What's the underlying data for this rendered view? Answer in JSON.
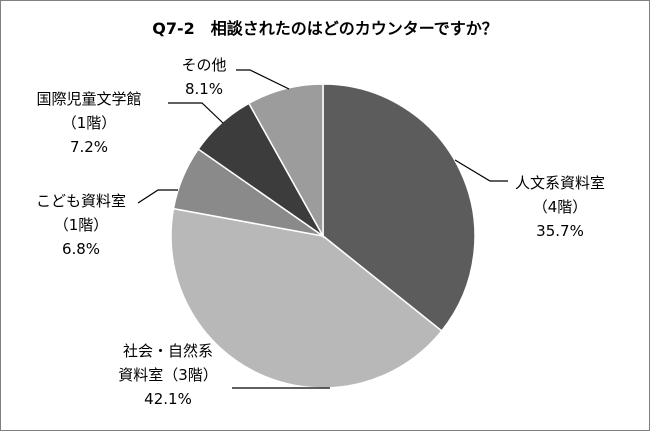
{
  "chart_data": {
    "type": "pie",
    "title": "Q7-2　相談されたのはどのカウンターですか？",
    "start": "top-clockwise",
    "slices": [
      {
        "lines": [
          "人文系資料室",
          "（4階）",
          "35.7%"
        ],
        "value": 35.7,
        "color": "#5c5c5c"
      },
      {
        "lines": [
          "社会・自然系",
          "資料室（3階）",
          "42.1%"
        ],
        "value": 42.1,
        "color": "#b8b8b8"
      },
      {
        "lines": [
          "こども資料室",
          "（1階）",
          "6.8%"
        ],
        "value": 6.8,
        "color": "#8a8a8a"
      },
      {
        "lines": [
          "国際児童文学館",
          "（1階）",
          "7.2%"
        ],
        "value": 7.2,
        "color": "#3c3c3c"
      },
      {
        "lines": [
          "その他",
          "8.1%"
        ],
        "value": 8.1,
        "color": "#9c9c9c"
      }
    ]
  }
}
